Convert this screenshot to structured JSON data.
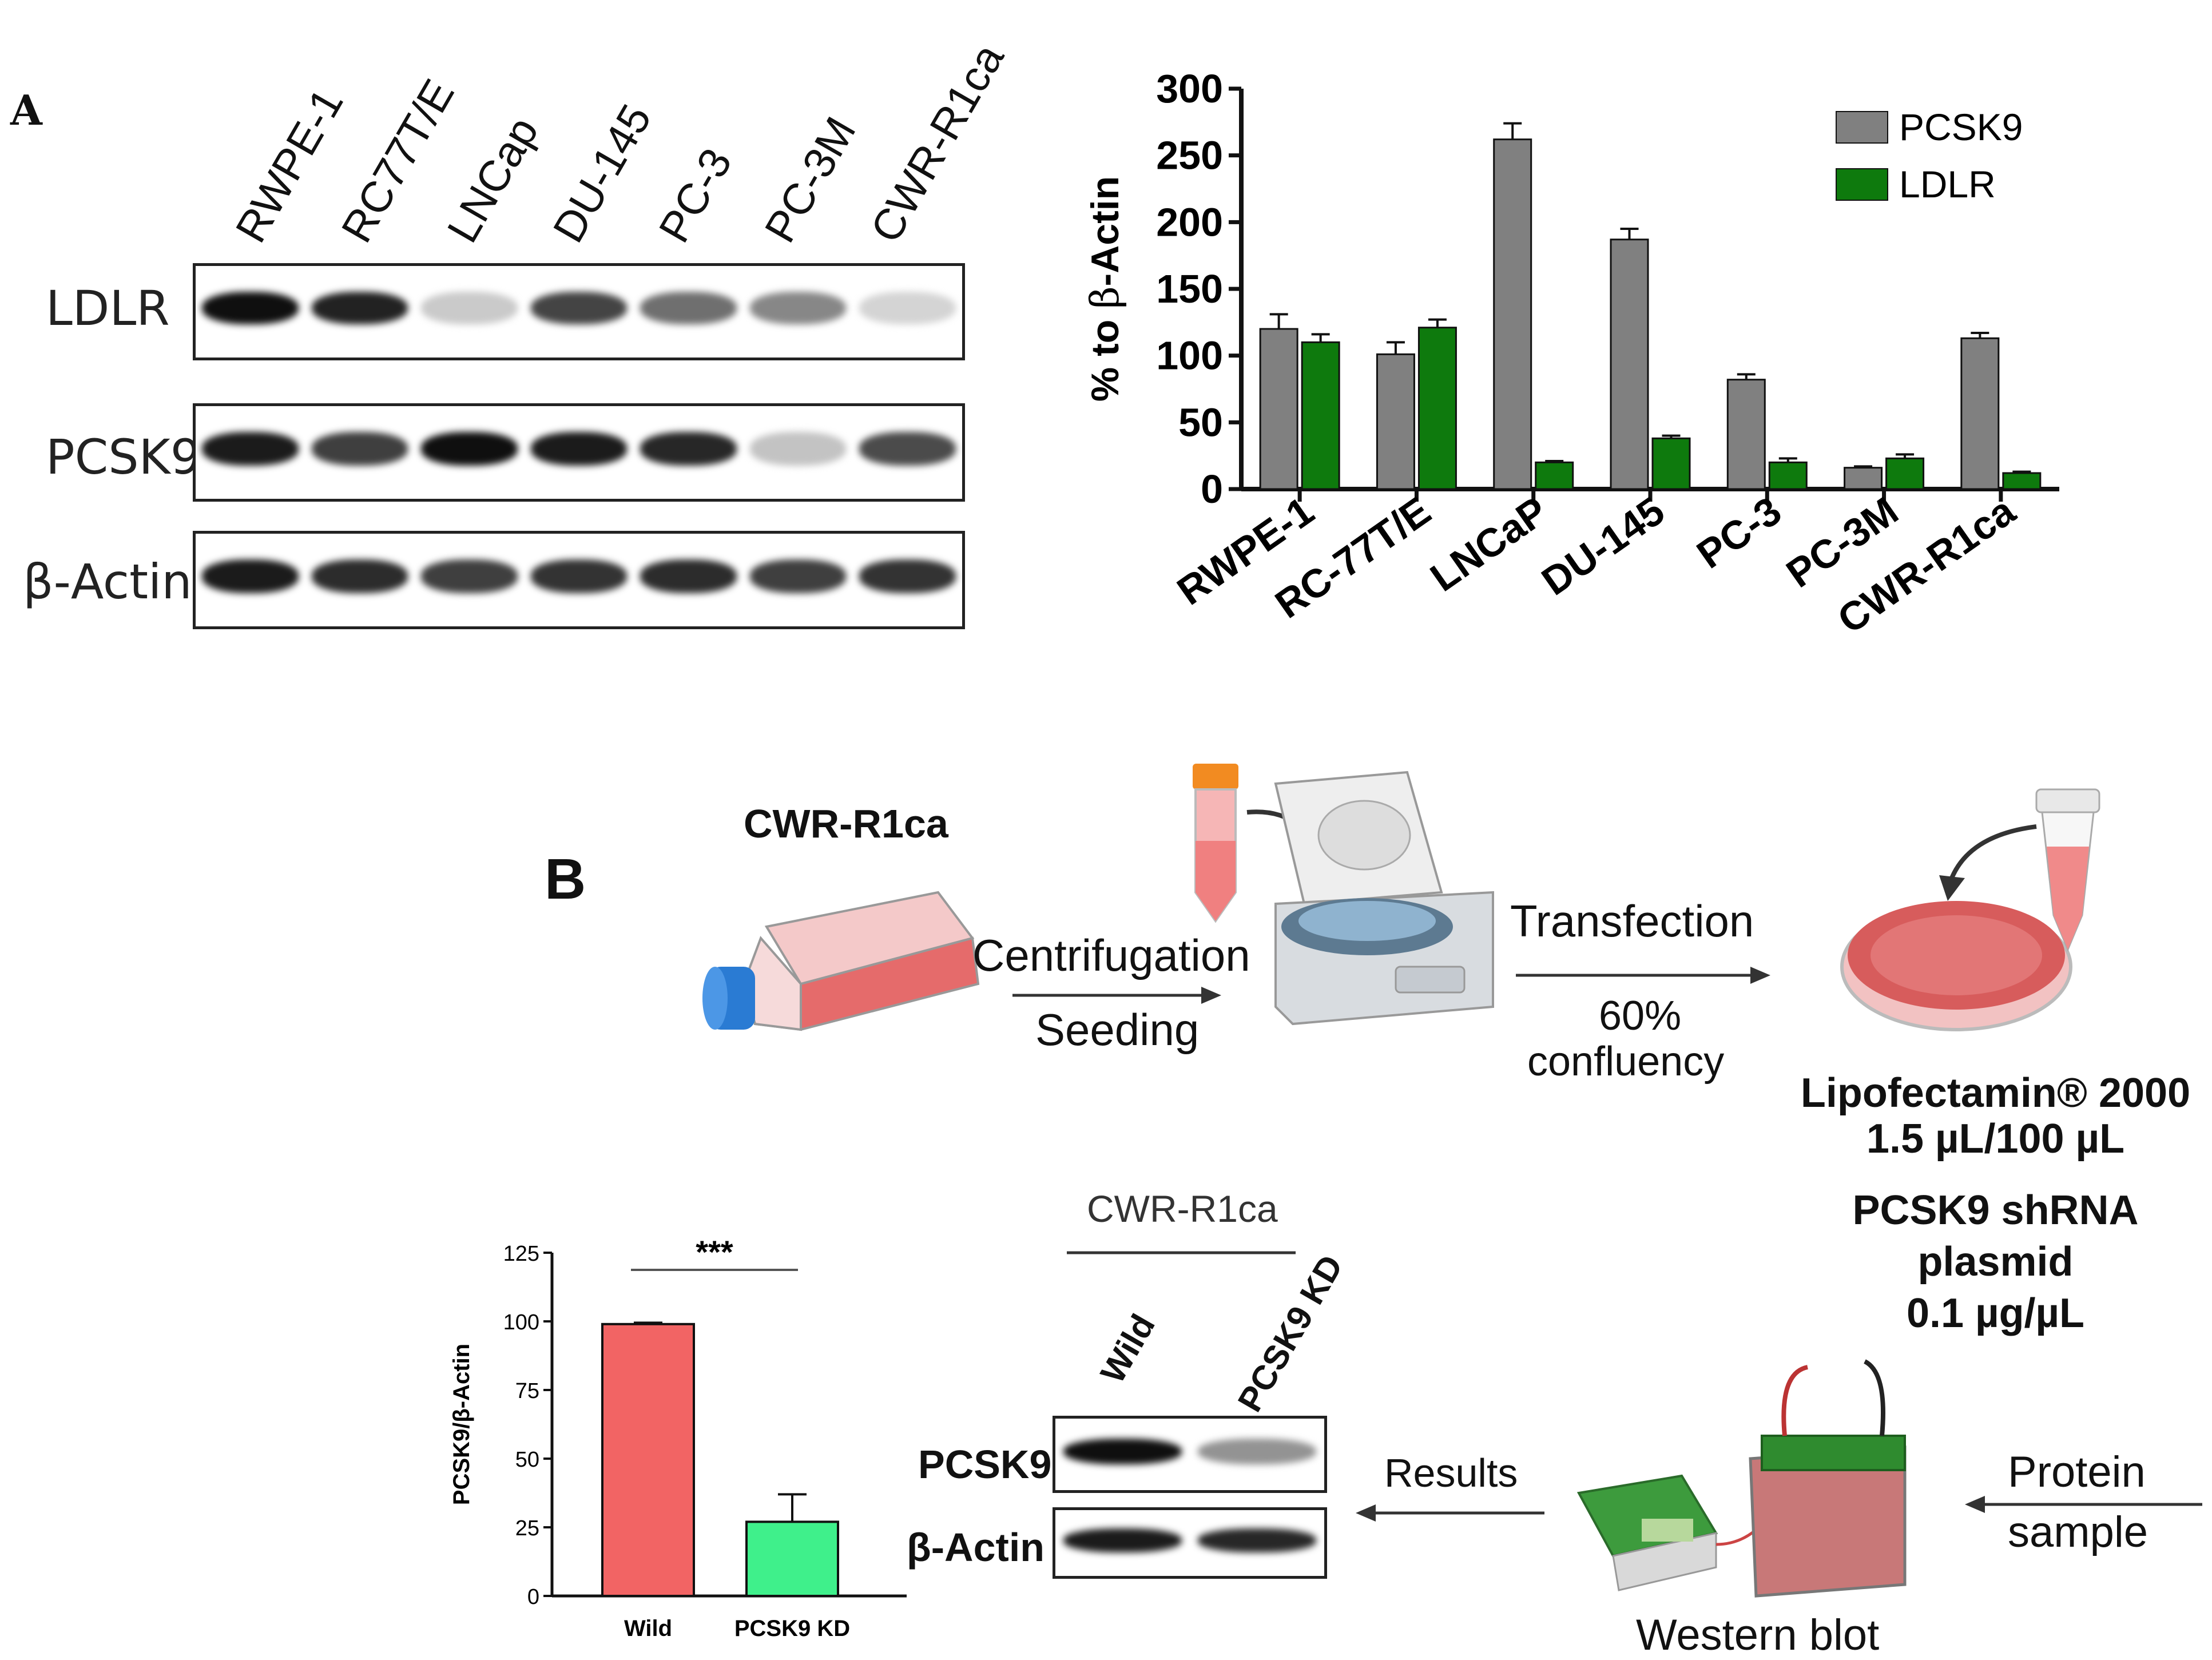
{
  "panel_a": {
    "letter": "A",
    "blot": {
      "lanes": [
        "RWPE-1",
        "RC77T/E",
        "LNCap",
        "DU-145",
        "PC-3",
        "PC-3M",
        "CWR-R1ca"
      ],
      "rows": [
        {
          "label": "LDLR",
          "intensity": [
            1.0,
            0.92,
            0.22,
            0.78,
            0.6,
            0.5,
            0.18
          ]
        },
        {
          "label": "PCSK9",
          "intensity": [
            0.95,
            0.8,
            1.0,
            0.95,
            0.9,
            0.25,
            0.75
          ]
        },
        {
          "label": "β-Actin",
          "intensity": [
            0.95,
            0.88,
            0.8,
            0.85,
            0.88,
            0.8,
            0.85
          ]
        }
      ]
    }
  },
  "chart_data": [
    {
      "type": "bar",
      "categories": [
        "RWPE-1",
        "RC-77T/E",
        "LNCaP",
        "DU-145",
        "PC-3",
        "PC-3M",
        "CWR-R1ca"
      ],
      "series": [
        {
          "name": "PCSK9",
          "values": [
            120,
            101,
            262,
            187,
            82,
            16,
            113
          ],
          "errors": [
            11,
            9,
            12,
            8,
            4,
            1,
            4
          ],
          "color": "#808080"
        },
        {
          "name": "LDLR",
          "values": [
            110,
            121,
            20,
            38,
            20,
            23,
            12
          ],
          "errors": [
            6,
            6,
            1,
            2,
            3,
            3,
            1
          ],
          "color": "#0e7a0d"
        }
      ],
      "ylabel_prefix": "% to ",
      "ylabel_symbol": "β",
      "ylabel_suffix": "-Actin",
      "ylim": [
        0,
        300
      ],
      "yticks": [
        "0",
        "50",
        "100",
        "150",
        "200",
        "250",
        "300"
      ],
      "legend_position": "top-right"
    },
    {
      "type": "bar",
      "categories": [
        "Wild",
        "PCSK9 KD"
      ],
      "values": [
        99,
        27
      ],
      "errors": [
        0.5,
        10
      ],
      "colors": [
        "#f26464",
        "#3ff08b"
      ],
      "ylabel": "PCSK9/β-Actin",
      "ylim": [
        0,
        125
      ],
      "yticks": [
        "0",
        "25",
        "50",
        "75",
        "100",
        "125"
      ],
      "significance": "***"
    }
  ],
  "panel_b": {
    "letter": "B",
    "cell_line": "CWR-R1ca",
    "step1_top": "Centrifugation",
    "step1_bottom": "Seeding",
    "step2_top": "Transfection",
    "step2_bottom_1": "60%",
    "step2_bottom_2": "confluency",
    "reagent_1": "Lipofectamin® 2000",
    "reagent_2": "1.5 µL/100 µL",
    "plasmid_1": "PCSK9 shRNA",
    "plasmid_2": "plasmid",
    "plasmid_3": "0.1 µg/µL",
    "protein_1": "Protein",
    "protein_2": "sample",
    "western_blot": "Western blot",
    "results": "Results",
    "blot2": {
      "header": "CWR-R1ca",
      "lanes": [
        "Wild",
        "PCSK9 KD"
      ],
      "rows": [
        {
          "label": "PCSK9",
          "intensity": [
            1.0,
            0.45
          ]
        },
        {
          "label": "β-Actin",
          "intensity": [
            0.95,
            0.9
          ]
        }
      ]
    }
  }
}
